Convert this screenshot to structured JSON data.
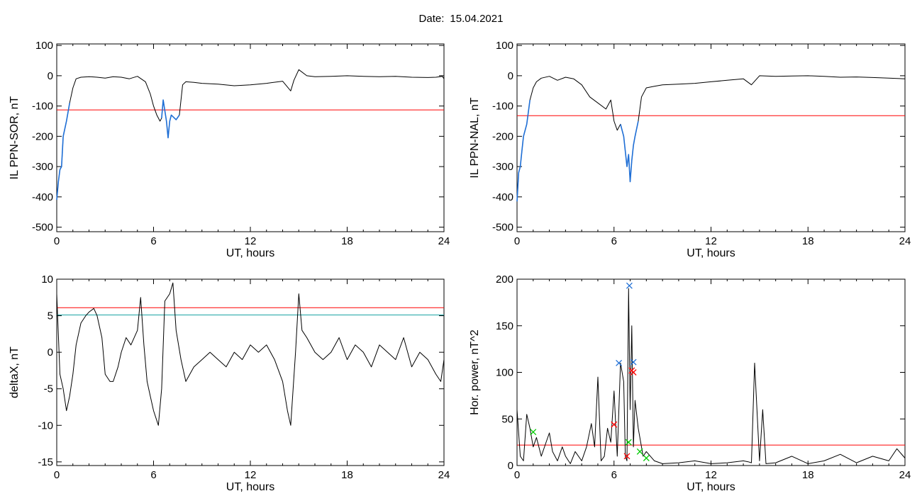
{
  "header": {
    "date_label": "Date:",
    "date_value": "15.04.2021"
  },
  "colors": {
    "axis": "#000000",
    "threshold": "#ff0000",
    "blue_trace": "#1f6fd6",
    "teal_line": "#1aa3a3",
    "green_marker": "#00cc00"
  },
  "chart_data": [
    {
      "type": "line",
      "xlabel": "UT, hours",
      "ylabel": "IL PPN-SOR, nT",
      "xlim": [
        0,
        24
      ],
      "ylim": [
        -515,
        105
      ],
      "xticks": [
        0,
        6,
        12,
        18,
        24
      ],
      "yticks": [
        100,
        0,
        -100,
        -200,
        -300,
        -400,
        -500
      ],
      "threshold": -113,
      "series": [
        {
          "role": "main",
          "x": [
            0,
            0.1,
            0.2,
            0.3,
            0.4,
            0.6,
            0.8,
            1.0,
            1.2,
            1.5,
            2,
            2.5,
            3,
            3.5,
            4,
            4.5,
            5,
            5.5,
            5.8,
            6.0,
            6.2,
            6.4,
            6.5,
            6.6,
            6.8,
            6.9,
            7.0,
            7.1,
            7.2,
            7.4,
            7.6,
            7.8,
            8,
            8.5,
            9,
            10,
            11,
            12,
            13,
            14,
            14.5,
            14.7,
            15,
            15.5,
            16,
            17,
            18,
            19,
            20,
            21,
            22,
            23,
            23.5,
            23.9,
            24
          ],
          "y": [
            -410,
            -350,
            -310,
            -300,
            -200,
            -150,
            -90,
            -40,
            -10,
            -5,
            -3,
            -5,
            -8,
            -3,
            -5,
            -10,
            -2,
            -20,
            -60,
            -100,
            -130,
            -150,
            -140,
            -80,
            -150,
            -205,
            -150,
            -130,
            -135,
            -145,
            -130,
            -30,
            -20,
            -22,
            -25,
            -28,
            -33,
            -30,
            -25,
            -18,
            -50,
            -15,
            20,
            0,
            -3,
            -2,
            0,
            -2,
            -3,
            -2,
            -5,
            -6,
            -5,
            -2,
            -10
          ]
        },
        {
          "role": "highlight",
          "segments": [
            {
              "x": [
                0,
                0.1,
                0.2,
                0.3,
                0.4,
                0.6,
                0.8
              ],
              "y": [
                -410,
                -350,
                -310,
                -300,
                -200,
                -150,
                -90
              ]
            },
            {
              "x": [
                6.5,
                6.6,
                6.8,
                6.9,
                7.0,
                7.1,
                7.2,
                7.4,
                7.6
              ],
              "y": [
                -140,
                -80,
                -150,
                -205,
                -150,
                -130,
                -135,
                -145,
                -130
              ]
            }
          ]
        }
      ]
    },
    {
      "type": "line",
      "xlabel": "UT, hours",
      "ylabel": "IL PPN-NAL, nT",
      "xlim": [
        0,
        24
      ],
      "ylim": [
        -515,
        105
      ],
      "xticks": [
        0,
        6,
        12,
        18,
        24
      ],
      "yticks": [
        100,
        0,
        -100,
        -200,
        -300,
        -400,
        -500
      ],
      "threshold": -132,
      "series": [
        {
          "role": "main",
          "x": [
            0,
            0.1,
            0.2,
            0.3,
            0.4,
            0.6,
            0.8,
            1.0,
            1.2,
            1.5,
            2,
            2.5,
            3,
            3.5,
            4,
            4.5,
            5,
            5.5,
            5.8,
            6.0,
            6.2,
            6.4,
            6.6,
            6.8,
            6.9,
            7.0,
            7.1,
            7.2,
            7.3,
            7.5,
            7.7,
            8,
            8.5,
            9,
            10,
            11,
            12,
            13,
            14,
            14.5,
            15,
            16,
            17,
            18,
            19,
            20,
            21,
            22,
            23,
            24
          ],
          "y": [
            -415,
            -320,
            -300,
            -250,
            -200,
            -160,
            -80,
            -40,
            -20,
            -8,
            -2,
            -15,
            -5,
            -10,
            -30,
            -70,
            -90,
            -110,
            -80,
            -150,
            -180,
            -160,
            -200,
            -300,
            -260,
            -350,
            -280,
            -230,
            -200,
            -150,
            -70,
            -40,
            -35,
            -30,
            -28,
            -25,
            -20,
            -15,
            -10,
            -30,
            0,
            -2,
            -1,
            0,
            -2,
            -5,
            -4,
            -6,
            -8,
            -10
          ]
        },
        {
          "role": "highlight",
          "segments": [
            {
              "x": [
                0,
                0.1,
                0.2,
                0.3,
                0.4,
                0.6,
                0.8
              ],
              "y": [
                -415,
                -320,
                -300,
                -250,
                -200,
                -160,
                -80
              ]
            },
            {
              "x": [
                6.4,
                6.6,
                6.8,
                6.9,
                7.0,
                7.1,
                7.2,
                7.3,
                7.5
              ],
              "y": [
                -160,
                -200,
                -300,
                -260,
                -350,
                -280,
                -230,
                -200,
                -150
              ]
            }
          ]
        }
      ]
    },
    {
      "type": "line",
      "xlabel": "UT, hours",
      "ylabel": "deltaX, nT",
      "xlim": [
        0,
        24
      ],
      "ylim": [
        -15.5,
        10
      ],
      "xticks": [
        0,
        6,
        12,
        18,
        24
      ],
      "yticks": [
        10,
        5,
        0,
        -5,
        -10,
        -15
      ],
      "threshold": 6.1,
      "threshold2": 5.1,
      "series": [
        {
          "role": "main",
          "x": [
            0,
            0.2,
            0.4,
            0.6,
            0.8,
            1.0,
            1.2,
            1.5,
            1.8,
            2.0,
            2.3,
            2.5,
            2.8,
            3.0,
            3.3,
            3.5,
            3.8,
            4.0,
            4.3,
            4.6,
            5.0,
            5.2,
            5.4,
            5.6,
            5.8,
            6.0,
            6.3,
            6.5,
            6.7,
            7.0,
            7.2,
            7.4,
            7.7,
            8.0,
            8.5,
            9.0,
            9.5,
            10,
            10.5,
            11,
            11.5,
            12,
            12.5,
            13,
            13.5,
            14,
            14.3,
            14.5,
            14.8,
            15.0,
            15.2,
            15.5,
            16,
            16.5,
            17,
            17.5,
            18,
            18.5,
            19,
            19.5,
            20,
            20.5,
            21,
            21.5,
            22,
            22.5,
            23,
            23.5,
            23.8,
            24
          ],
          "y": [
            8,
            -3,
            -5,
            -8,
            -6,
            -3,
            1,
            4,
            5,
            5.5,
            6,
            5,
            2,
            -3,
            -4,
            -4,
            -2,
            0,
            2,
            1,
            3,
            7.5,
            1,
            -4,
            -6,
            -8,
            -10,
            -5,
            7,
            8,
            9.5,
            3,
            -1,
            -4,
            -2,
            -1,
            0,
            -1,
            -2,
            0,
            -1,
            1,
            0,
            1,
            -1,
            -4,
            -8,
            -10,
            0,
            8,
            3,
            2,
            0,
            -1,
            0,
            2,
            -1,
            1,
            0,
            -2,
            1,
            0,
            -1,
            2,
            -2,
            0,
            -1,
            -3,
            -4,
            -1
          ]
        }
      ]
    },
    {
      "type": "line",
      "xlabel": "UT, hours",
      "ylabel": "Hor. power, nT^2",
      "xlim": [
        0,
        24
      ],
      "ylim": [
        0,
        200
      ],
      "xticks": [
        0,
        6,
        12,
        18,
        24
      ],
      "yticks": [
        200,
        150,
        100,
        50,
        0
      ],
      "threshold": 22,
      "series": [
        {
          "role": "main",
          "x": [
            0,
            0.2,
            0.4,
            0.6,
            0.8,
            1.0,
            1.2,
            1.5,
            1.8,
            2.0,
            2.2,
            2.5,
            2.8,
            3.0,
            3.3,
            3.6,
            4.0,
            4.3,
            4.6,
            4.8,
            5.0,
            5.2,
            5.4,
            5.6,
            5.8,
            6.0,
            6.2,
            6.4,
            6.6,
            6.7,
            6.8,
            6.9,
            7.0,
            7.1,
            7.2,
            7.3,
            7.5,
            7.8,
            8.0,
            8.5,
            9,
            10,
            11,
            12,
            13,
            14,
            14.3,
            14.5,
            14.7,
            15.0,
            15.2,
            15.4,
            16,
            17,
            18,
            19,
            20,
            21,
            22,
            23,
            23.5,
            24
          ],
          "y": [
            60,
            10,
            5,
            55,
            40,
            20,
            30,
            10,
            25,
            35,
            15,
            5,
            20,
            10,
            2,
            15,
            5,
            20,
            45,
            20,
            95,
            5,
            10,
            40,
            25,
            80,
            10,
            110,
            90,
            10,
            5,
            190,
            60,
            150,
            20,
            70,
            40,
            10,
            15,
            5,
            2,
            3,
            5,
            2,
            3,
            5,
            4,
            3,
            110,
            5,
            60,
            2,
            3,
            10,
            2,
            5,
            12,
            3,
            10,
            5,
            18,
            8
          ]
        },
        {
          "role": "markers_blue",
          "x": [
            6.3,
            6.95,
            7.2
          ],
          "y": [
            110,
            193,
            111
          ]
        },
        {
          "role": "markers_red",
          "x": [
            6.0,
            6.8,
            7.1,
            7.2
          ],
          "y": [
            44,
            10,
            102,
            100
          ]
        },
        {
          "role": "markers_green",
          "x": [
            1.0,
            6.9,
            7.6,
            8.0
          ],
          "y": [
            36,
            25,
            15,
            8
          ]
        }
      ]
    }
  ]
}
